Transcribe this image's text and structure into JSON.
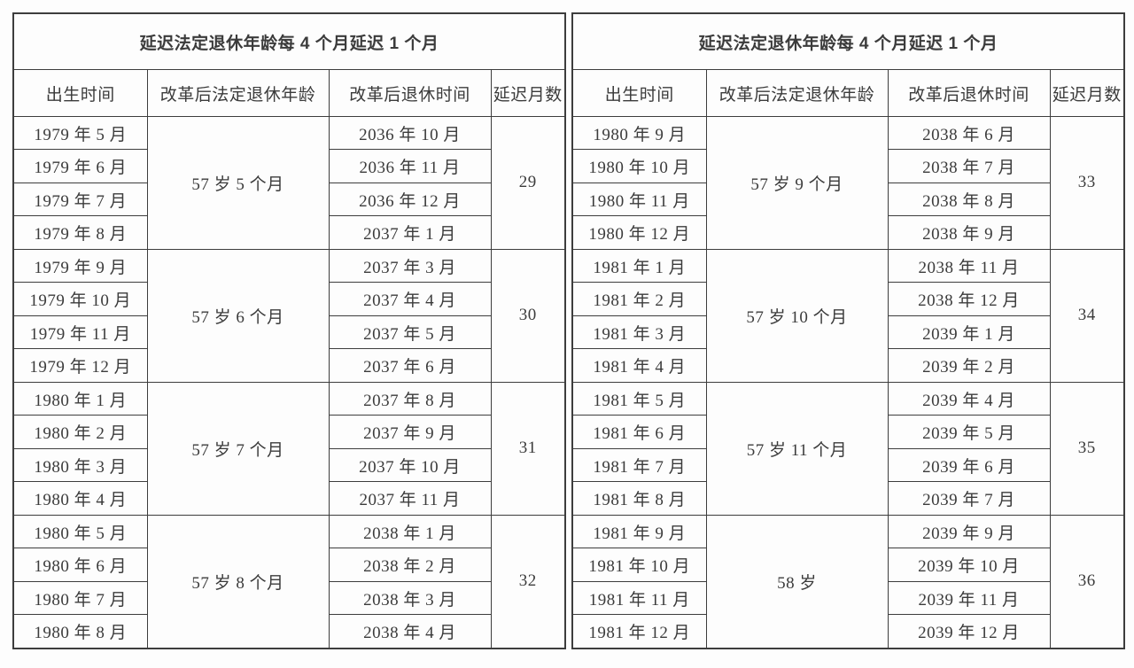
{
  "page": {
    "background": "#fdfdfd",
    "text_color": "#3b3b3b",
    "border_color": "#3d3d3d"
  },
  "tables": [
    {
      "title": "延迟法定退休年龄每 4 个月延迟 1 个月",
      "columns": [
        "出生时间",
        "改革后法定退休年龄",
        "改革后退休时间",
        "延迟月数"
      ],
      "blocks": [
        {
          "age": "57 岁 5 个月",
          "delay": "29",
          "rows": [
            {
              "birth": "1979 年 5 月",
              "retire": "2036 年 10 月"
            },
            {
              "birth": "1979 年 6 月",
              "retire": "2036 年 11 月"
            },
            {
              "birth": "1979 年 7 月",
              "retire": "2036 年 12 月"
            },
            {
              "birth": "1979 年 8 月",
              "retire": "2037 年 1 月"
            }
          ]
        },
        {
          "age": "57 岁 6 个月",
          "delay": "30",
          "rows": [
            {
              "birth": "1979 年 9 月",
              "retire": "2037 年 3 月"
            },
            {
              "birth": "1979 年 10 月",
              "retire": "2037 年 4 月"
            },
            {
              "birth": "1979 年 11 月",
              "retire": "2037 年 5 月"
            },
            {
              "birth": "1979 年 12 月",
              "retire": "2037 年 6 月"
            }
          ]
        },
        {
          "age": "57 岁 7 个月",
          "delay": "31",
          "rows": [
            {
              "birth": "1980 年 1 月",
              "retire": "2037 年 8 月"
            },
            {
              "birth": "1980 年 2 月",
              "retire": "2037 年 9 月"
            },
            {
              "birth": "1980 年 3 月",
              "retire": "2037 年 10 月"
            },
            {
              "birth": "1980 年 4 月",
              "retire": "2037 年 11 月"
            }
          ]
        },
        {
          "age": "57 岁 8 个月",
          "delay": "32",
          "rows": [
            {
              "birth": "1980 年 5 月",
              "retire": "2038 年 1 月"
            },
            {
              "birth": "1980 年 6 月",
              "retire": "2038 年 2 月"
            },
            {
              "birth": "1980 年 7 月",
              "retire": "2038 年 3 月"
            },
            {
              "birth": "1980 年 8 月",
              "retire": "2038 年 4 月"
            }
          ]
        }
      ]
    },
    {
      "title": "延迟法定退休年龄每 4 个月延迟 1 个月",
      "columns": [
        "出生时间",
        "改革后法定退休年龄",
        "改革后退休时间",
        "延迟月数"
      ],
      "blocks": [
        {
          "age": "57 岁 9 个月",
          "delay": "33",
          "rows": [
            {
              "birth": "1980 年 9 月",
              "retire": "2038 年 6 月"
            },
            {
              "birth": "1980 年 10 月",
              "retire": "2038 年 7 月"
            },
            {
              "birth": "1980 年 11 月",
              "retire": "2038 年 8 月"
            },
            {
              "birth": "1980 年 12 月",
              "retire": "2038 年 9 月"
            }
          ]
        },
        {
          "age": "57 岁 10 个月",
          "delay": "34",
          "rows": [
            {
              "birth": "1981 年 1 月",
              "retire": "2038 年 11 月"
            },
            {
              "birth": "1981 年 2 月",
              "retire": "2038 年 12 月"
            },
            {
              "birth": "1981 年 3 月",
              "retire": "2039 年 1 月"
            },
            {
              "birth": "1981 年 4 月",
              "retire": "2039 年 2 月"
            }
          ]
        },
        {
          "age": "57 岁 11 个月",
          "delay": "35",
          "rows": [
            {
              "birth": "1981 年 5 月",
              "retire": "2039 年 4 月"
            },
            {
              "birth": "1981 年 6 月",
              "retire": "2039 年 5 月"
            },
            {
              "birth": "1981 年 7 月",
              "retire": "2039 年 6 月"
            },
            {
              "birth": "1981 年 8 月",
              "retire": "2039 年 7 月"
            }
          ]
        },
        {
          "age": "58 岁",
          "delay": "36",
          "rows": [
            {
              "birth": "1981 年 9 月",
              "retire": "2039 年 9 月"
            },
            {
              "birth": "1981 年 10 月",
              "retire": "2039 年 10 月"
            },
            {
              "birth": "1981 年 11 月",
              "retire": "2039 年 11 月"
            },
            {
              "birth": "1981 年 12 月",
              "retire": "2039 年 12 月"
            }
          ]
        }
      ]
    }
  ]
}
